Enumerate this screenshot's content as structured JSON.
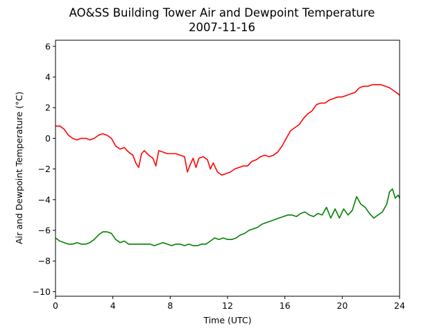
{
  "chart_data": {
    "type": "line",
    "title": "AO&SS Building Tower Air and Dewpoint Temperature",
    "subtitle": "2007-11-16",
    "xlabel": "Time (UTC)",
    "ylabel": "Air and Dewpoint Temperature (°C)",
    "xlim": [
      0,
      24
    ],
    "ylim": [
      -10.3,
      6.4
    ],
    "xticks": [
      0,
      4,
      8,
      12,
      16,
      20,
      24
    ],
    "yticks": [
      -10,
      -8,
      -6,
      -4,
      -2,
      0,
      2,
      4,
      6
    ],
    "grid": false,
    "series": [
      {
        "color": "#ff0000",
        "x": [
          0,
          0.3,
          0.6,
          0.9,
          1.2,
          1.5,
          1.8,
          2.1,
          2.4,
          2.7,
          3.0,
          3.3,
          3.6,
          3.9,
          4.2,
          4.5,
          4.8,
          5.1,
          5.4,
          5.6,
          5.8,
          6.0,
          6.2,
          6.5,
          6.8,
          7.0,
          7.2,
          7.5,
          7.8,
          8.1,
          8.4,
          8.7,
          9.0,
          9.2,
          9.4,
          9.6,
          9.8,
          10.0,
          10.3,
          10.6,
          10.8,
          11.0,
          11.3,
          11.6,
          11.9,
          12.2,
          12.5,
          12.8,
          13.1,
          13.4,
          13.7,
          14.0,
          14.3,
          14.6,
          14.9,
          15.2,
          15.5,
          15.8,
          16.1,
          16.4,
          16.7,
          17.0,
          17.3,
          17.6,
          17.9,
          18.2,
          18.5,
          18.8,
          19.1,
          19.4,
          19.7,
          20.0,
          20.3,
          20.6,
          20.9,
          21.2,
          21.5,
          21.8,
          22.1,
          22.4,
          22.7,
          23.0,
          23.3,
          23.6,
          23.9,
          24.0
        ],
        "y": [
          0.8,
          0.8,
          0.6,
          0.2,
          0.0,
          -0.1,
          0.0,
          0.0,
          -0.1,
          0.0,
          0.2,
          0.3,
          0.2,
          0.0,
          -0.5,
          -0.7,
          -0.6,
          -0.9,
          -1.1,
          -1.6,
          -1.9,
          -1.0,
          -0.8,
          -1.1,
          -1.3,
          -1.8,
          -0.8,
          -0.9,
          -1.0,
          -1.0,
          -1.0,
          -1.1,
          -1.2,
          -2.2,
          -1.7,
          -1.3,
          -1.9,
          -1.3,
          -1.2,
          -1.4,
          -2.0,
          -1.6,
          -2.2,
          -2.4,
          -2.3,
          -2.2,
          -2.0,
          -1.9,
          -1.8,
          -1.8,
          -1.5,
          -1.4,
          -1.2,
          -1.1,
          -1.2,
          -1.1,
          -0.9,
          -0.5,
          0.0,
          0.5,
          0.7,
          0.9,
          1.3,
          1.6,
          1.8,
          2.2,
          2.3,
          2.3,
          2.5,
          2.6,
          2.7,
          2.7,
          2.8,
          2.9,
          3.0,
          3.3,
          3.4,
          3.4,
          3.5,
          3.5,
          3.5,
          3.4,
          3.3,
          3.1,
          2.9,
          2.8
        ]
      },
      {
        "color": "#008000",
        "x": [
          0,
          0.3,
          0.6,
          0.9,
          1.2,
          1.5,
          1.8,
          2.1,
          2.4,
          2.7,
          3.0,
          3.3,
          3.6,
          3.9,
          4.2,
          4.5,
          4.8,
          5.1,
          5.4,
          5.7,
          6.0,
          6.3,
          6.6,
          6.9,
          7.2,
          7.5,
          7.8,
          8.1,
          8.4,
          8.7,
          9.0,
          9.3,
          9.6,
          9.9,
          10.2,
          10.5,
          10.8,
          11.1,
          11.4,
          11.7,
          12.0,
          12.3,
          12.6,
          12.9,
          13.2,
          13.5,
          13.8,
          14.1,
          14.4,
          14.7,
          15.0,
          15.3,
          15.6,
          15.9,
          16.2,
          16.5,
          16.8,
          17.1,
          17.4,
          17.7,
          18.0,
          18.3,
          18.6,
          18.9,
          19.2,
          19.5,
          19.8,
          20.1,
          20.4,
          20.7,
          21.0,
          21.3,
          21.6,
          21.9,
          22.2,
          22.5,
          22.8,
          23.1,
          23.3,
          23.5,
          23.7,
          23.9,
          24.0
        ],
        "y": [
          -6.5,
          -6.7,
          -6.8,
          -6.9,
          -6.9,
          -6.8,
          -6.9,
          -6.9,
          -6.8,
          -6.6,
          -6.3,
          -6.1,
          -6.1,
          -6.2,
          -6.6,
          -6.8,
          -6.7,
          -6.9,
          -6.9,
          -6.9,
          -6.9,
          -6.9,
          -6.9,
          -7.0,
          -6.9,
          -6.8,
          -6.9,
          -7.0,
          -6.9,
          -6.9,
          -7.0,
          -6.9,
          -7.0,
          -7.0,
          -6.9,
          -6.9,
          -6.7,
          -6.5,
          -6.6,
          -6.5,
          -6.6,
          -6.6,
          -6.5,
          -6.3,
          -6.2,
          -6.0,
          -5.9,
          -5.8,
          -5.6,
          -5.5,
          -5.4,
          -5.3,
          -5.2,
          -5.1,
          -5.0,
          -5.0,
          -5.1,
          -4.9,
          -4.8,
          -5.0,
          -5.1,
          -4.9,
          -5.0,
          -4.5,
          -5.2,
          -4.6,
          -5.2,
          -4.6,
          -5.0,
          -4.7,
          -3.8,
          -4.3,
          -4.5,
          -4.9,
          -5.2,
          -5.0,
          -4.8,
          -4.3,
          -3.5,
          -3.3,
          -3.9,
          -3.7,
          -3.9
        ]
      }
    ]
  }
}
